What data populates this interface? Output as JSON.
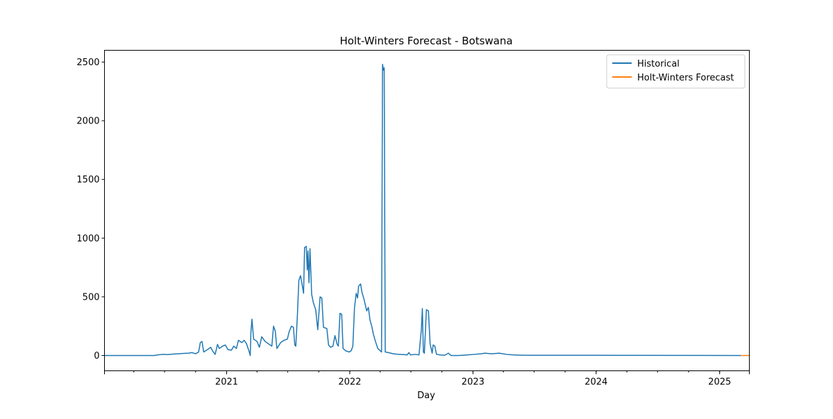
{
  "chart_data": {
    "type": "line",
    "title": "Holt-Winters Forecast - Botswana",
    "xlabel": "Day",
    "ylabel": "",
    "xlim": [
      "2020-01-05",
      "2025-03-30"
    ],
    "ylim": [
      -130,
      2600
    ],
    "x_ticks": [
      {
        "label": "2021",
        "date": "2021-01-01"
      },
      {
        "label": "2022",
        "date": "2022-01-01"
      },
      {
        "label": "2023",
        "date": "2023-01-01"
      },
      {
        "label": "2024",
        "date": "2024-01-01"
      },
      {
        "label": "2025",
        "date": "2025-01-01"
      }
    ],
    "y_ticks": [
      0,
      500,
      1000,
      1500,
      2000,
      2500
    ],
    "legend_position": "top-right",
    "grid": false,
    "series": [
      {
        "name": "Historical",
        "color": "#1f77b4",
        "points": [
          [
            "2020-01-05",
            0
          ],
          [
            "2020-06-01",
            0
          ],
          [
            "2020-06-10",
            5
          ],
          [
            "2020-06-25",
            10
          ],
          [
            "2020-07-10",
            8
          ],
          [
            "2020-07-25",
            12
          ],
          [
            "2020-08-10",
            15
          ],
          [
            "2020-08-25",
            18
          ],
          [
            "2020-09-10",
            20
          ],
          [
            "2020-09-20",
            25
          ],
          [
            "2020-10-01",
            15
          ],
          [
            "2020-10-10",
            30
          ],
          [
            "2020-10-15",
            110
          ],
          [
            "2020-10-20",
            120
          ],
          [
            "2020-10-25",
            30
          ],
          [
            "2020-11-05",
            50
          ],
          [
            "2020-11-15",
            70
          ],
          [
            "2020-11-20",
            40
          ],
          [
            "2020-11-28",
            10
          ],
          [
            "2020-12-05",
            95
          ],
          [
            "2020-12-10",
            60
          ],
          [
            "2020-12-20",
            80
          ],
          [
            "2020-12-28",
            90
          ],
          [
            "2021-01-05",
            50
          ],
          [
            "2021-01-15",
            45
          ],
          [
            "2021-01-22",
            80
          ],
          [
            "2021-01-30",
            60
          ],
          [
            "2021-02-05",
            130
          ],
          [
            "2021-02-15",
            110
          ],
          [
            "2021-02-22",
            130
          ],
          [
            "2021-03-01",
            100
          ],
          [
            "2021-03-08",
            40
          ],
          [
            "2021-03-12",
            0
          ],
          [
            "2021-03-14",
            200
          ],
          [
            "2021-03-17",
            310
          ],
          [
            "2021-03-22",
            140
          ],
          [
            "2021-04-01",
            120
          ],
          [
            "2021-04-08",
            70
          ],
          [
            "2021-04-15",
            160
          ],
          [
            "2021-04-25",
            120
          ],
          [
            "2021-05-05",
            100
          ],
          [
            "2021-05-15",
            80
          ],
          [
            "2021-05-20",
            250
          ],
          [
            "2021-05-25",
            210
          ],
          [
            "2021-05-30",
            60
          ],
          [
            "2021-06-10",
            110
          ],
          [
            "2021-06-20",
            130
          ],
          [
            "2021-06-30",
            140
          ],
          [
            "2021-07-05",
            200
          ],
          [
            "2021-07-12",
            250
          ],
          [
            "2021-07-18",
            240
          ],
          [
            "2021-07-22",
            90
          ],
          [
            "2021-07-25",
            80
          ],
          [
            "2021-07-30",
            360
          ],
          [
            "2021-08-03",
            640
          ],
          [
            "2021-08-08",
            680
          ],
          [
            "2021-08-13",
            600
          ],
          [
            "2021-08-17",
            530
          ],
          [
            "2021-08-20",
            920
          ],
          [
            "2021-08-25",
            930
          ],
          [
            "2021-08-28",
            730
          ],
          [
            "2021-08-30",
            890
          ],
          [
            "2021-09-02",
            620
          ],
          [
            "2021-09-05",
            910
          ],
          [
            "2021-09-10",
            520
          ],
          [
            "2021-09-15",
            450
          ],
          [
            "2021-09-22",
            390
          ],
          [
            "2021-09-28",
            220
          ],
          [
            "2021-10-05",
            500
          ],
          [
            "2021-10-10",
            490
          ],
          [
            "2021-10-15",
            240
          ],
          [
            "2021-10-25",
            230
          ],
          [
            "2021-10-30",
            90
          ],
          [
            "2021-11-05",
            70
          ],
          [
            "2021-11-12",
            80
          ],
          [
            "2021-11-18",
            170
          ],
          [
            "2021-11-24",
            100
          ],
          [
            "2021-11-28",
            80
          ],
          [
            "2021-12-03",
            360
          ],
          [
            "2021-12-08",
            350
          ],
          [
            "2021-12-12",
            60
          ],
          [
            "2021-12-20",
            40
          ],
          [
            "2021-12-30",
            30
          ],
          [
            "2022-01-05",
            40
          ],
          [
            "2022-01-10",
            80
          ],
          [
            "2022-01-15",
            410
          ],
          [
            "2022-01-20",
            530
          ],
          [
            "2022-01-24",
            490
          ],
          [
            "2022-01-27",
            590
          ],
          [
            "2022-02-02",
            610
          ],
          [
            "2022-02-06",
            540
          ],
          [
            "2022-02-12",
            480
          ],
          [
            "2022-02-16",
            430
          ],
          [
            "2022-02-20",
            380
          ],
          [
            "2022-02-25",
            410
          ],
          [
            "2022-03-02",
            300
          ],
          [
            "2022-03-07",
            250
          ],
          [
            "2022-03-12",
            180
          ],
          [
            "2022-03-18",
            120
          ],
          [
            "2022-03-25",
            60
          ],
          [
            "2022-04-05",
            30
          ],
          [
            "2022-04-08",
            2480
          ],
          [
            "2022-04-11",
            2430
          ],
          [
            "2022-04-13",
            2450
          ],
          [
            "2022-04-16",
            30
          ],
          [
            "2022-04-25",
            25
          ],
          [
            "2022-05-10",
            15
          ],
          [
            "2022-05-25",
            10
          ],
          [
            "2022-06-10",
            8
          ],
          [
            "2022-06-20",
            5
          ],
          [
            "2022-06-25",
            25
          ],
          [
            "2022-06-30",
            5
          ],
          [
            "2022-07-15",
            10
          ],
          [
            "2022-07-25",
            5
          ],
          [
            "2022-08-01",
            220
          ],
          [
            "2022-08-04",
            400
          ],
          [
            "2022-08-07",
            30
          ],
          [
            "2022-08-10",
            20
          ],
          [
            "2022-08-16",
            390
          ],
          [
            "2022-08-22",
            380
          ],
          [
            "2022-08-27",
            100
          ],
          [
            "2022-09-02",
            20
          ],
          [
            "2022-09-05",
            90
          ],
          [
            "2022-09-10",
            80
          ],
          [
            "2022-09-15",
            10
          ],
          [
            "2022-09-25",
            5
          ],
          [
            "2022-10-10",
            3
          ],
          [
            "2022-10-20",
            20
          ],
          [
            "2022-10-28",
            0
          ],
          [
            "2022-11-20",
            0
          ],
          [
            "2022-12-15",
            5
          ],
          [
            "2023-01-05",
            10
          ],
          [
            "2023-01-25",
            15
          ],
          [
            "2023-02-05",
            20
          ],
          [
            "2023-02-25",
            15
          ],
          [
            "2023-03-20",
            20
          ],
          [
            "2023-04-10",
            10
          ],
          [
            "2023-05-01",
            5
          ],
          [
            "2023-06-01",
            2
          ],
          [
            "2024-01-01",
            2
          ],
          [
            "2025-03-01",
            0
          ],
          [
            "2025-03-05",
            0
          ]
        ]
      },
      {
        "name": "Holt-Winters Forecast",
        "color": "#ff7f0e",
        "points": [
          [
            "2025-03-05",
            0
          ],
          [
            "2025-03-30",
            0
          ]
        ]
      }
    ]
  }
}
